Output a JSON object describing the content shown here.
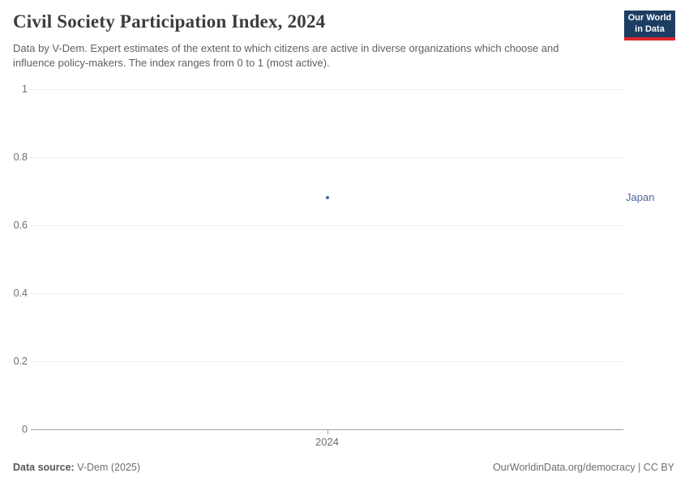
{
  "header": {
    "title": "Civil Society Participation Index, 2024",
    "subtitle": "Data by V-Dem. Expert estimates of the extent to which citizens are active in diverse organizations which choose and influence policy-makers. The index ranges from 0 to 1 (most active).",
    "logo": {
      "line1": "Our World",
      "line2": "in Data"
    }
  },
  "chart_data": {
    "type": "scatter",
    "title": "Civil Society Participation Index, 2024",
    "x": [
      2024
    ],
    "xticks": [
      "2024"
    ],
    "series": [
      {
        "name": "Japan",
        "values": [
          0.68
        ]
      }
    ],
    "xlabel": "",
    "ylabel": "",
    "ylim": [
      0,
      1
    ],
    "yticks": [
      0,
      0.2,
      0.4,
      0.6,
      0.8,
      1
    ],
    "grid": "horizontal-dashed",
    "legend": "entity-label-right"
  },
  "footer": {
    "source_label": "Data source:",
    "source_value": " V-Dem (2025)",
    "link": "OurWorldinData.org/democracy | CC BY"
  },
  "colors": {
    "accent_blue": "#4c669f",
    "logo_navy": "#1d3d63",
    "logo_red": "#e0262c",
    "gridline": "#e3e3e3",
    "axis_line": "#a3a3a3",
    "tick_text": "#6e6e6e",
    "title_text": "#3d3d3d"
  }
}
